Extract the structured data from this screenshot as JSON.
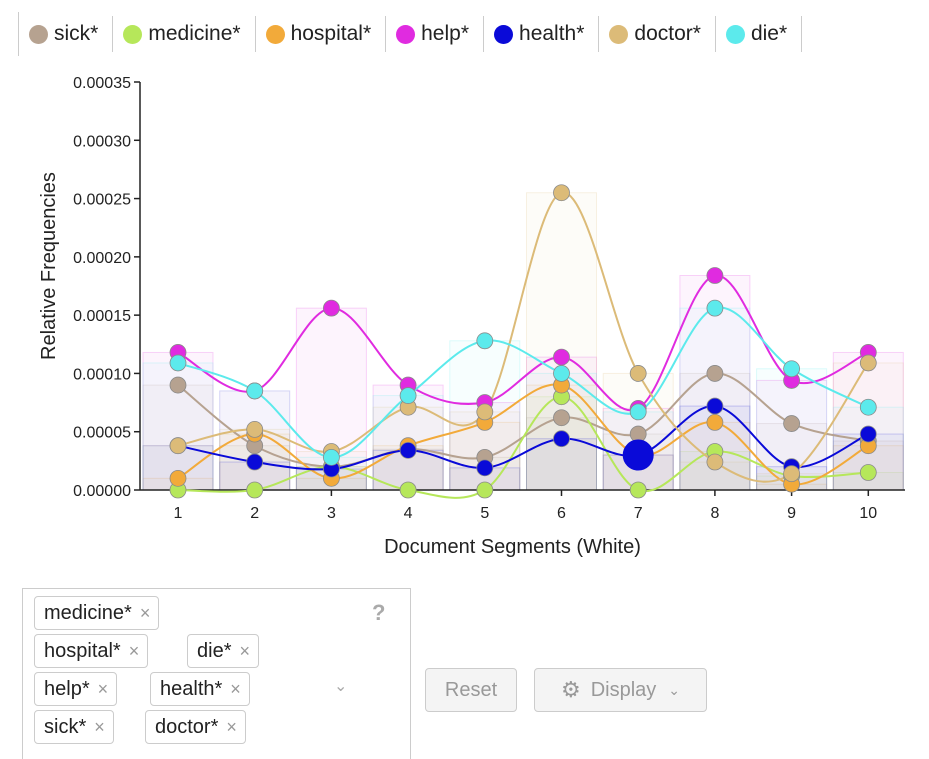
{
  "legend": [
    {
      "label": "sick*",
      "color": "#b6a290"
    },
    {
      "label": "medicine*",
      "color": "#b6e75a"
    },
    {
      "label": "hospital*",
      "color": "#f2aa3a"
    },
    {
      "label": "help*",
      "color": "#e02be0"
    },
    {
      "label": "health*",
      "color": "#0a0ad8"
    },
    {
      "label": "doctor*",
      "color": "#dcbb78"
    },
    {
      "label": "die*",
      "color": "#5ceaec"
    }
  ],
  "chart_data": {
    "type": "line",
    "xlabel": "Document Segments (White)",
    "ylabel": "Relative Frequencies",
    "categories": [
      "1",
      "2",
      "3",
      "4",
      "5",
      "6",
      "7",
      "8",
      "9",
      "10"
    ],
    "ylim": [
      0,
      0.00035
    ],
    "yticks": [
      "0.00000",
      "0.00005",
      "0.00010",
      "0.00015",
      "0.00020",
      "0.00025",
      "0.00030",
      "0.00035"
    ],
    "series": [
      {
        "name": "sick*",
        "color": "#b6a290",
        "values": [
          9e-05,
          3.8e-05,
          2e-05,
          3.5e-05,
          2.8e-05,
          6.2e-05,
          4.8e-05,
          0.0001,
          5.7e-05,
          4.2e-05
        ]
      },
      {
        "name": "medicine*",
        "color": "#b6e75a",
        "values": [
          0.0,
          0.0,
          2e-05,
          0.0,
          0.0,
          8e-05,
          0.0,
          3.3e-05,
          1.2e-05,
          1.5e-05
        ]
      },
      {
        "name": "hospital*",
        "color": "#f2aa3a",
        "values": [
          1e-05,
          4.8e-05,
          1e-05,
          3.8e-05,
          5.8e-05,
          9e-05,
          3e-05,
          5.8e-05,
          5e-06,
          3.8e-05
        ]
      },
      {
        "name": "help*",
        "color": "#e02be0",
        "values": [
          0.000118,
          8.5e-05,
          0.000156,
          9e-05,
          7.5e-05,
          0.000114,
          7e-05,
          0.000184,
          9.4e-05,
          0.000118
        ]
      },
      {
        "name": "health*",
        "color": "#0a0ad8",
        "values": [
          3.8e-05,
          2.4e-05,
          1.8e-05,
          3.4e-05,
          1.9e-05,
          4.4e-05,
          3e-05,
          7.2e-05,
          2e-05,
          4.8e-05
        ]
      },
      {
        "name": "doctor*",
        "color": "#dcbb78",
        "values": [
          3.8e-05,
          5.2e-05,
          3.3e-05,
          7.1e-05,
          6.7e-05,
          0.000255,
          0.0001,
          2.4e-05,
          1.4e-05,
          0.000109
        ]
      },
      {
        "name": "die*",
        "color": "#5ceaec",
        "values": [
          0.000109,
          8.5e-05,
          2.8e-05,
          8.1e-05,
          0.000128,
          0.0001,
          6.7e-05,
          0.000156,
          0.000104,
          7.1e-05
        ]
      }
    ],
    "highlight": {
      "series": "health*",
      "category": "7"
    }
  },
  "terms": [
    {
      "label": "medicine*"
    },
    {
      "label": "hospital*"
    },
    {
      "label": "die*"
    },
    {
      "label": "help*"
    },
    {
      "label": "health*"
    },
    {
      "label": "sick*"
    },
    {
      "label": "doctor*"
    }
  ],
  "controls": {
    "reset_label": "Reset",
    "display_label": "Display",
    "help_glyph": "?"
  },
  "icons": {
    "remove": "×",
    "chevron": "⌄",
    "gear": "⚙"
  }
}
